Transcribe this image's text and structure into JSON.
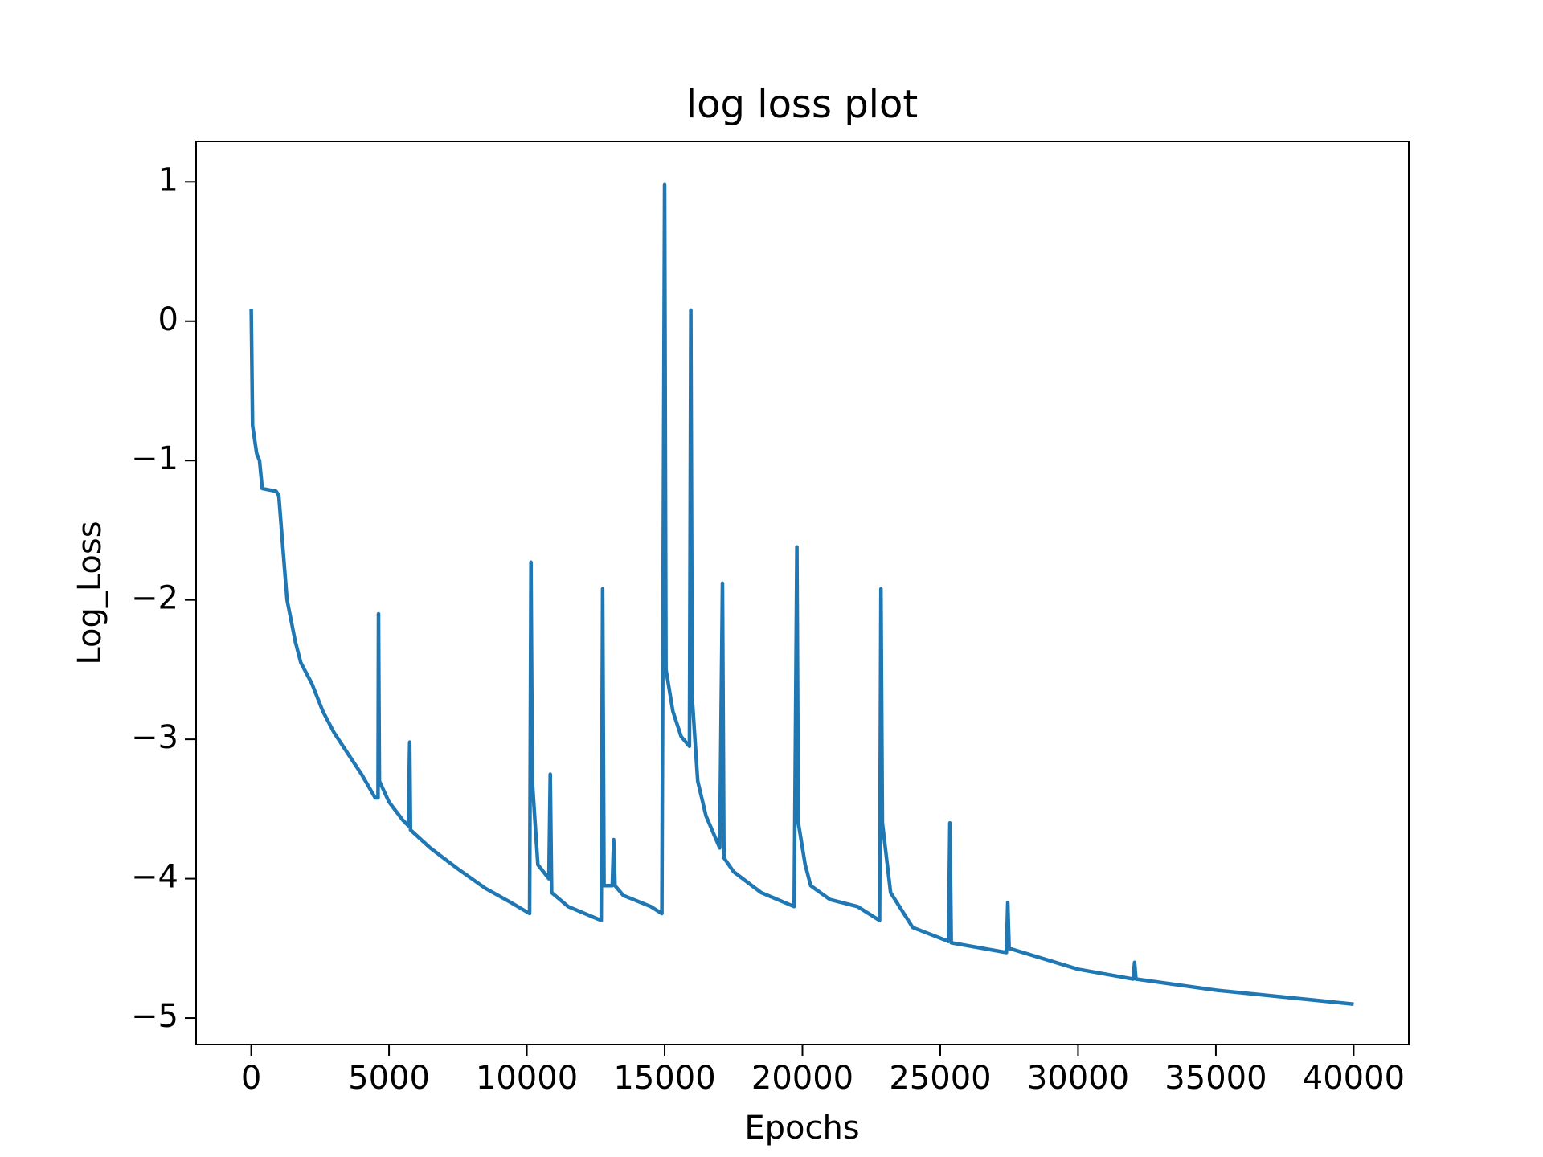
{
  "chart_data": {
    "type": "line",
    "title": "log loss plot",
    "x_label": "Epochs",
    "y_label": "Log_Loss",
    "xlim": [
      -2000,
      42000
    ],
    "ylim": [
      -5.19,
      1.29
    ],
    "xticks": [
      0,
      5000,
      10000,
      15000,
      20000,
      25000,
      30000,
      35000,
      40000
    ],
    "yticks": [
      {
        "value": -5,
        "label": "−5"
      },
      {
        "value": -4,
        "label": "−4"
      },
      {
        "value": -3,
        "label": "−3"
      },
      {
        "value": -2,
        "label": "−2"
      },
      {
        "value": -1,
        "label": "−1"
      },
      0,
      1
    ],
    "x": [
      0,
      50,
      200,
      300,
      400,
      900,
      1000,
      1200,
      1300,
      1600,
      1800,
      2200,
      2600,
      3000,
      3500,
      4000,
      4500,
      4600,
      4620,
      4650,
      5000,
      5500,
      5700,
      5750,
      5780,
      6500,
      7500,
      8500,
      9500,
      10100,
      10150,
      10200,
      10400,
      10800,
      10850,
      10900,
      11500,
      12700,
      12750,
      12800,
      13100,
      13150,
      13200,
      13500,
      14500,
      14900,
      15000,
      15050,
      15300,
      15600,
      15900,
      15950,
      16000,
      16200,
      16500,
      17000,
      17100,
      17150,
      17500,
      18500,
      19700,
      19800,
      19850,
      20100,
      20300,
      21000,
      22000,
      22800,
      22850,
      22900,
      23200,
      24000,
      25300,
      25350,
      25400,
      27400,
      27450,
      27500,
      30000,
      32000,
      32050,
      32100,
      35000,
      40000
    ],
    "series": [
      {
        "name": "log loss",
        "color": "#1f77b4",
        "values": [
          0.09,
          -0.75,
          -0.95,
          -1.0,
          -1.2,
          -1.22,
          -1.25,
          -1.75,
          -2.0,
          -2.3,
          -2.45,
          -2.6,
          -2.8,
          -2.95,
          -3.1,
          -3.25,
          -3.42,
          -3.42,
          -2.1,
          -3.3,
          -3.45,
          -3.58,
          -3.62,
          -3.02,
          -3.65,
          -3.78,
          -3.93,
          -4.07,
          -4.18,
          -4.25,
          -1.73,
          -3.3,
          -3.9,
          -4.0,
          -3.25,
          -4.1,
          -4.2,
          -4.3,
          -1.92,
          -4.05,
          -4.05,
          -3.72,
          -4.05,
          -4.12,
          -4.2,
          -4.25,
          0.98,
          -2.5,
          -2.8,
          -2.98,
          -3.05,
          0.08,
          -2.7,
          -3.3,
          -3.55,
          -3.78,
          -1.88,
          -3.85,
          -3.95,
          -4.1,
          -4.2,
          -1.62,
          -3.6,
          -3.9,
          -4.05,
          -4.15,
          -4.2,
          -4.3,
          -1.92,
          -3.6,
          -4.1,
          -4.35,
          -4.45,
          -3.6,
          -4.46,
          -4.53,
          -4.17,
          -4.5,
          -4.65,
          -4.72,
          -4.6,
          -4.72,
          -4.8,
          -4.9
        ]
      }
    ]
  }
}
